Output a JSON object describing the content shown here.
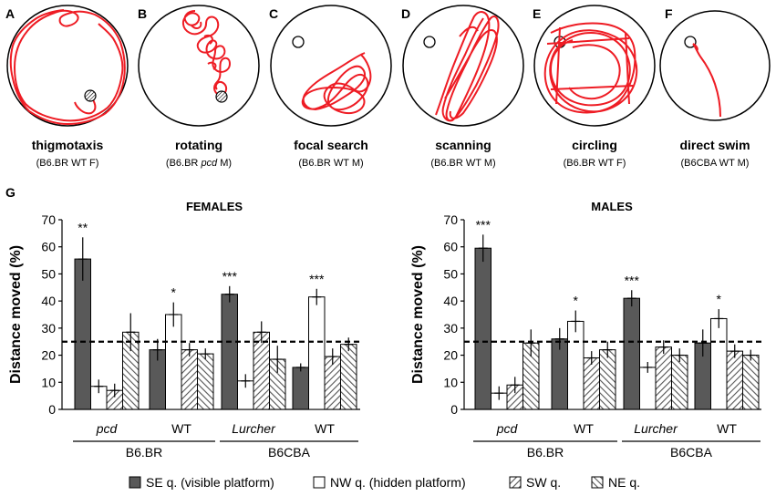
{
  "track_panels": [
    {
      "letter": "A",
      "name": "thigmotaxis",
      "label_pre": "(B6.BR WT F)",
      "label_it": "",
      "label_post": ""
    },
    {
      "letter": "B",
      "name": "rotating",
      "label_pre": "(B6.BR ",
      "label_it": "pcd",
      "label_post": " M)"
    },
    {
      "letter": "C",
      "name": "focal search",
      "label_pre": "(B6.BR WT M)",
      "label_it": "",
      "label_post": ""
    },
    {
      "letter": "D",
      "name": "scanning",
      "label_pre": "(B6.BR WT M)",
      "label_it": "",
      "label_post": ""
    },
    {
      "letter": "E",
      "name": "circling",
      "label_pre": "(B6.BR WT F)",
      "label_it": "",
      "label_post": ""
    },
    {
      "letter": "F",
      "name": "direct swim",
      "label_pre": "(B6CBA WT M)",
      "label_it": "",
      "label_post": ""
    }
  ],
  "panel_g_letter": "G",
  "colors": {
    "track": "#ee1c24",
    "se": "#595959",
    "nw": "#ffffff",
    "axis": "#000000"
  },
  "chart_data": [
    {
      "type": "bar",
      "title": "FEMALES",
      "ylabel": "Distance moved (%)",
      "ylim": [
        0,
        70
      ],
      "yticks": [
        0,
        10,
        20,
        30,
        40,
        50,
        60,
        70
      ],
      "reference_line": 25,
      "groups": [
        {
          "label": "pcd",
          "italic": true,
          "strain": "B6.BR",
          "values": [
            55.5,
            8.5,
            7,
            28.5
          ],
          "errors": [
            8,
            2.5,
            2.5,
            7
          ],
          "sig": "**",
          "sig_bar": 0
        },
        {
          "label": "WT",
          "italic": false,
          "strain": "B6.BR",
          "values": [
            22,
            35,
            22,
            20.5
          ],
          "errors": [
            4,
            4.5,
            2.5,
            2
          ],
          "sig": "*",
          "sig_bar": 1
        },
        {
          "label": "Lurcher",
          "italic": true,
          "strain": "B6CBA",
          "values": [
            42.5,
            10.5,
            28.5,
            18.5
          ],
          "errors": [
            3,
            2.5,
            4,
            5
          ],
          "sig": "***",
          "sig_bar": 0
        },
        {
          "label": "WT",
          "italic": false,
          "strain": "B6CBA",
          "values": [
            15.5,
            41.5,
            19.5,
            24
          ],
          "errors": [
            1.5,
            3,
            3,
            2.5
          ],
          "sig": "***",
          "sig_bar": 1
        }
      ],
      "strains": [
        "B6.BR",
        "B6CBA"
      ],
      "series": [
        "SE q. (visible platform)",
        "NW q. (hidden platform)",
        "SW q.",
        "NE q."
      ]
    },
    {
      "type": "bar",
      "title": "MALES",
      "ylabel": "Distance moved (%)",
      "ylim": [
        0,
        70
      ],
      "yticks": [
        0,
        10,
        20,
        30,
        40,
        50,
        60,
        70
      ],
      "reference_line": 25,
      "groups": [
        {
          "label": "pcd",
          "italic": true,
          "strain": "B6.BR",
          "values": [
            59.5,
            6,
            9,
            24.5
          ],
          "errors": [
            5,
            2.5,
            3,
            5
          ],
          "sig": "***",
          "sig_bar": 0
        },
        {
          "label": "WT",
          "italic": false,
          "strain": "B6.BR",
          "values": [
            26,
            32.5,
            19,
            22
          ],
          "errors": [
            4,
            4,
            2.5,
            3
          ],
          "sig": "*",
          "sig_bar": 1
        },
        {
          "label": "Lurcher",
          "italic": true,
          "strain": "B6CBA",
          "values": [
            41,
            15.5,
            23,
            20
          ],
          "errors": [
            3,
            2,
            2.5,
            2.5
          ],
          "sig": "***",
          "sig_bar": 0
        },
        {
          "label": "WT",
          "italic": false,
          "strain": "B6CBA",
          "values": [
            24.5,
            33.5,
            21.5,
            20
          ],
          "errors": [
            5,
            3.5,
            2.5,
            2
          ],
          "sig": "*",
          "sig_bar": 1
        }
      ],
      "strains": [
        "B6.BR",
        "B6CBA"
      ],
      "series": [
        "SE q. (visible platform)",
        "NW q. (hidden platform)",
        "SW q.",
        "NE q."
      ]
    }
  ],
  "legend": {
    "se": "SE q. (visible platform)",
    "nw": "NW q. (hidden platform)",
    "sw": "SW q.",
    "ne": "NE q."
  }
}
